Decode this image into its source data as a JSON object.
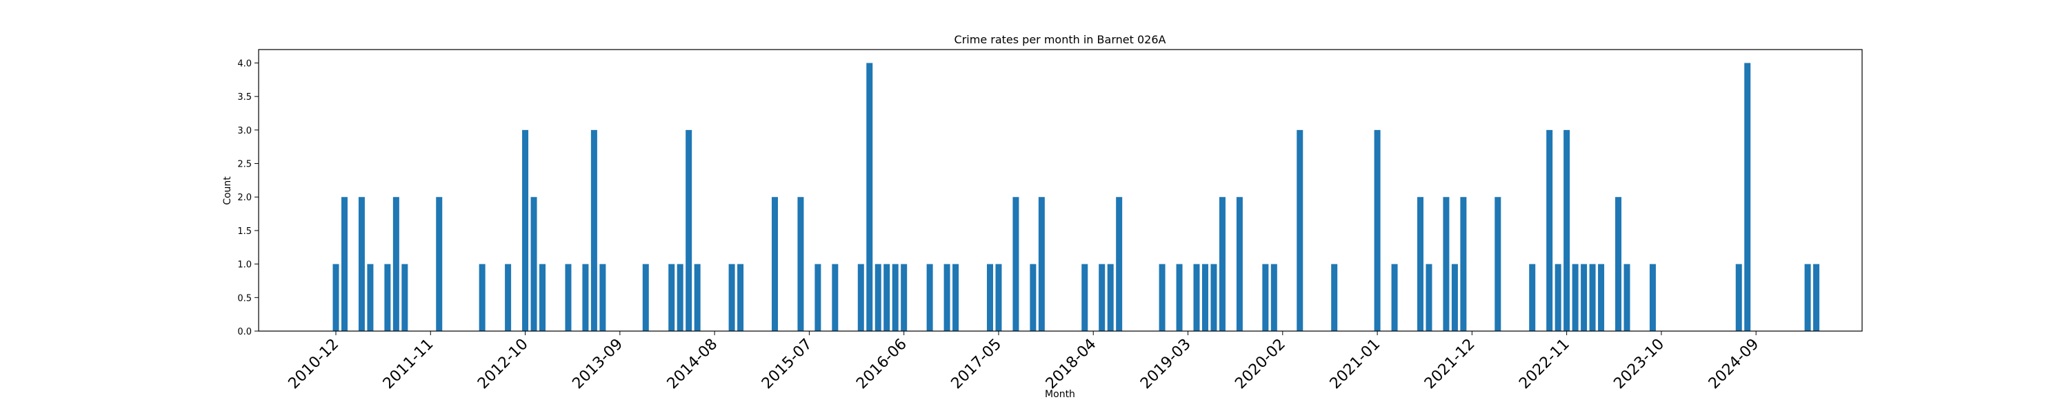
{
  "chart_data": {
    "type": "bar",
    "title": "Crime rates per month in Barnet 026A",
    "xlabel": "Month",
    "ylabel": "Count",
    "ylim": [
      0,
      4.2
    ],
    "yticks": [
      "0.0",
      "0.5",
      "1.0",
      "1.5",
      "2.0",
      "2.5",
      "3.0",
      "3.5",
      "4.0"
    ],
    "xticks": [
      "2010-12",
      "2011-11",
      "2012-10",
      "2013-09",
      "2014-08",
      "2015-07",
      "2016-06",
      "2017-05",
      "2018-04",
      "2019-03",
      "2020-02",
      "2021-01",
      "2021-12",
      "2022-11",
      "2023-10",
      "2024-09"
    ],
    "grid": false,
    "color": "#1f77b4",
    "bars": [
      {
        "x": "2010-12",
        "y": 1
      },
      {
        "x": "2011-01",
        "y": 2
      },
      {
        "x": "2011-03",
        "y": 2
      },
      {
        "x": "2011-04",
        "y": 1
      },
      {
        "x": "2011-06",
        "y": 1
      },
      {
        "x": "2011-07",
        "y": 2
      },
      {
        "x": "2011-08",
        "y": 1
      },
      {
        "x": "2011-12",
        "y": 2
      },
      {
        "x": "2012-05",
        "y": 1
      },
      {
        "x": "2012-08",
        "y": 1
      },
      {
        "x": "2012-10",
        "y": 3
      },
      {
        "x": "2012-11",
        "y": 2
      },
      {
        "x": "2012-12",
        "y": 1
      },
      {
        "x": "2013-03",
        "y": 1
      },
      {
        "x": "2013-05",
        "y": 1
      },
      {
        "x": "2013-06",
        "y": 3
      },
      {
        "x": "2013-07",
        "y": 1
      },
      {
        "x": "2013-12",
        "y": 1
      },
      {
        "x": "2014-03",
        "y": 1
      },
      {
        "x": "2014-04",
        "y": 1
      },
      {
        "x": "2014-05",
        "y": 3
      },
      {
        "x": "2014-06",
        "y": 1
      },
      {
        "x": "2014-10",
        "y": 1
      },
      {
        "x": "2014-11",
        "y": 1
      },
      {
        "x": "2015-03",
        "y": 2
      },
      {
        "x": "2015-06",
        "y": 2
      },
      {
        "x": "2015-08",
        "y": 1
      },
      {
        "x": "2015-10",
        "y": 1
      },
      {
        "x": "2016-01",
        "y": 1
      },
      {
        "x": "2016-02",
        "y": 4
      },
      {
        "x": "2016-03",
        "y": 1
      },
      {
        "x": "2016-04",
        "y": 1
      },
      {
        "x": "2016-05",
        "y": 1
      },
      {
        "x": "2016-06",
        "y": 1
      },
      {
        "x": "2016-09",
        "y": 1
      },
      {
        "x": "2016-11",
        "y": 1
      },
      {
        "x": "2016-12",
        "y": 1
      },
      {
        "x": "2017-04",
        "y": 1
      },
      {
        "x": "2017-05",
        "y": 1
      },
      {
        "x": "2017-07",
        "y": 2
      },
      {
        "x": "2017-09",
        "y": 1
      },
      {
        "x": "2017-10",
        "y": 2
      },
      {
        "x": "2018-03",
        "y": 1
      },
      {
        "x": "2018-05",
        "y": 1
      },
      {
        "x": "2018-06",
        "y": 1
      },
      {
        "x": "2018-07",
        "y": 2
      },
      {
        "x": "2018-12",
        "y": 1
      },
      {
        "x": "2019-02",
        "y": 1
      },
      {
        "x": "2019-04",
        "y": 1
      },
      {
        "x": "2019-05",
        "y": 1
      },
      {
        "x": "2019-06",
        "y": 1
      },
      {
        "x": "2019-07",
        "y": 2
      },
      {
        "x": "2019-09",
        "y": 2
      },
      {
        "x": "2019-12",
        "y": 1
      },
      {
        "x": "2020-01",
        "y": 1
      },
      {
        "x": "2020-04",
        "y": 3
      },
      {
        "x": "2020-08",
        "y": 1
      },
      {
        "x": "2021-01",
        "y": 3
      },
      {
        "x": "2021-03",
        "y": 1
      },
      {
        "x": "2021-06",
        "y": 2
      },
      {
        "x": "2021-07",
        "y": 1
      },
      {
        "x": "2021-09",
        "y": 2
      },
      {
        "x": "2021-10",
        "y": 1
      },
      {
        "x": "2021-11",
        "y": 2
      },
      {
        "x": "2022-03",
        "y": 2
      },
      {
        "x": "2022-07",
        "y": 1
      },
      {
        "x": "2022-09",
        "y": 3
      },
      {
        "x": "2022-10",
        "y": 1
      },
      {
        "x": "2022-11",
        "y": 3
      },
      {
        "x": "2022-12",
        "y": 1
      },
      {
        "x": "2023-01",
        "y": 1
      },
      {
        "x": "2023-02",
        "y": 1
      },
      {
        "x": "2023-03",
        "y": 1
      },
      {
        "x": "2023-05",
        "y": 2
      },
      {
        "x": "2023-06",
        "y": 1
      },
      {
        "x": "2023-09",
        "y": 1
      },
      {
        "x": "2024-07",
        "y": 1
      },
      {
        "x": "2024-08",
        "y": 4
      },
      {
        "x": "2025-03",
        "y": 1
      },
      {
        "x": "2025-04",
        "y": 1
      }
    ]
  }
}
